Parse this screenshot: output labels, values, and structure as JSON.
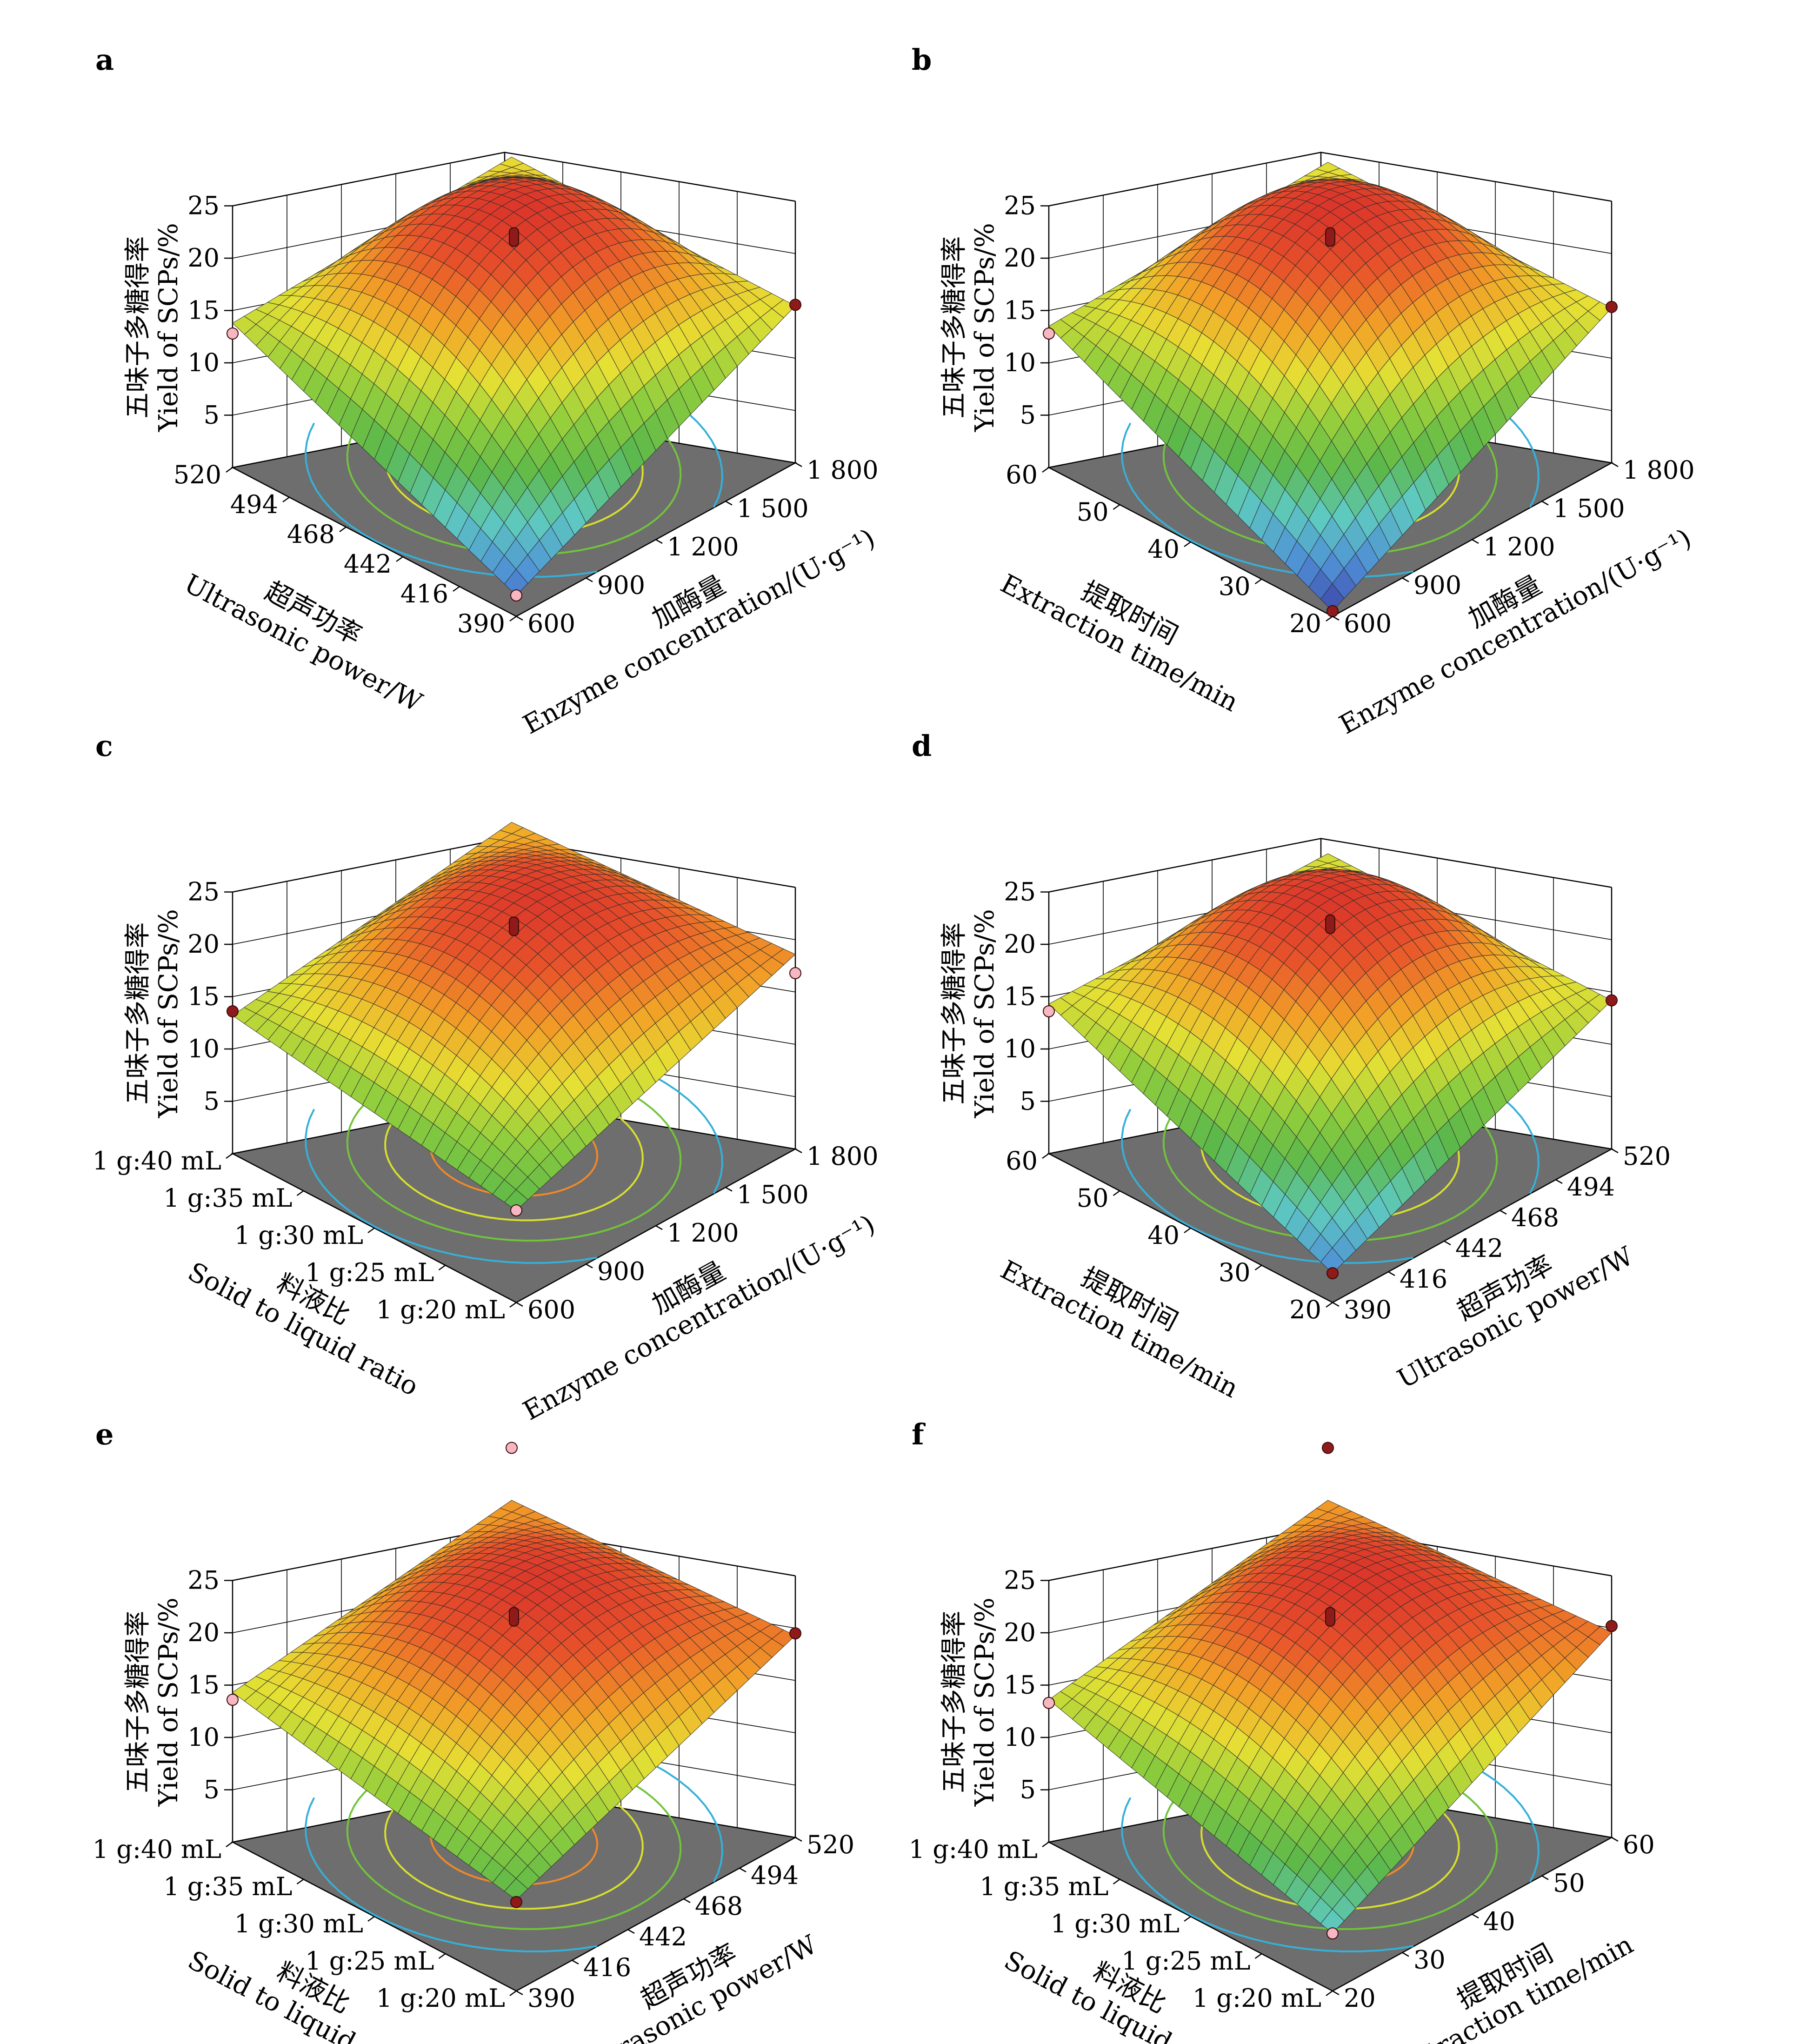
{
  "colors": {
    "floor": "#6e6e6e",
    "surface_scale": [
      "#3a35a0",
      "#4f8fd6",
      "#5ec9c0",
      "#5cb84a",
      "#8fcd3d",
      "#e6e034",
      "#f2a127",
      "#e8552a",
      "#d9302a"
    ],
    "contour_scale": [
      "#36b0d8",
      "#72c43a",
      "#d8e02c",
      "#f08a24"
    ],
    "point_pink": "#f7b7c2",
    "point_dark": "#8e1a1a"
  },
  "panels": [
    {
      "label": "a",
      "zaxis": {
        "title_zh": "五味子多糖得率",
        "title_en": "Yield of SCPs/%",
        "ticks": [
          "5",
          "10",
          "15",
          "20",
          "25"
        ]
      },
      "left_axis": {
        "title_zh": "超声功率",
        "title_en": "Ultrasonic power/W",
        "ticks": [
          "390",
          "416",
          "442",
          "468",
          "494",
          "520"
        ]
      },
      "right_axis": {
        "title_zh": "加酶量",
        "title_en": "Enzyme concentration/(U·g⁻¹)",
        "ticks": [
          "600",
          "900",
          "1 200",
          "1 500",
          "1 800"
        ]
      }
    },
    {
      "label": "b",
      "zaxis": {
        "title_zh": "五味子多糖得率",
        "title_en": "Yield of SCPs/%",
        "ticks": [
          "5",
          "10",
          "15",
          "20",
          "25"
        ]
      },
      "left_axis": {
        "title_zh": "提取时间",
        "title_en": "Extraction time/min",
        "ticks": [
          "20",
          "30",
          "40",
          "50",
          "60"
        ]
      },
      "right_axis": {
        "title_zh": "加酶量",
        "title_en": "Enzyme concentration/(U·g⁻¹)",
        "ticks": [
          "600",
          "900",
          "1 200",
          "1 500",
          "1 800"
        ]
      }
    },
    {
      "label": "c",
      "zaxis": {
        "title_zh": "五味子多糖得率",
        "title_en": "Yield of SCPs/%",
        "ticks": [
          "5",
          "10",
          "15",
          "20",
          "25"
        ]
      },
      "left_axis": {
        "title_zh": "料液比",
        "title_en": "Solid to liquid ratio",
        "ticks": [
          "1 g:20 mL",
          "1 g:25 mL",
          "1 g:30 mL",
          "1 g:35 mL",
          "1 g:40 mL"
        ]
      },
      "right_axis": {
        "title_zh": "加酶量",
        "title_en": "Enzyme concentration/(U·g⁻¹)",
        "ticks": [
          "600",
          "900",
          "1 200",
          "1 500",
          "1 800"
        ]
      }
    },
    {
      "label": "d",
      "zaxis": {
        "title_zh": "五味子多糖得率",
        "title_en": "Yield of SCPs/%",
        "ticks": [
          "5",
          "10",
          "15",
          "20",
          "25"
        ]
      },
      "left_axis": {
        "title_zh": "提取时间",
        "title_en": "Extraction time/min",
        "ticks": [
          "20",
          "30",
          "40",
          "50",
          "60"
        ]
      },
      "right_axis": {
        "title_zh": "超声功率",
        "title_en": "Ultrasonic power/W",
        "ticks": [
          "390",
          "416",
          "442",
          "468",
          "494",
          "520"
        ]
      }
    },
    {
      "label": "e",
      "zaxis": {
        "title_zh": "五味子多糖得率",
        "title_en": "Yield of SCPs/%",
        "ticks": [
          "5",
          "10",
          "15",
          "20",
          "25"
        ]
      },
      "left_axis": {
        "title_zh": "料液比",
        "title_en": "Solid to liquid ratio",
        "ticks": [
          "1 g:20 mL",
          "1 g:25 mL",
          "1 g:30 mL",
          "1 g:35 mL",
          "1 g:40 mL"
        ]
      },
      "right_axis": {
        "title_zh": "超声功率",
        "title_en": "Ultrasonic power/W",
        "ticks": [
          "390",
          "416",
          "442",
          "468",
          "494",
          "520"
        ]
      }
    },
    {
      "label": "f",
      "zaxis": {
        "title_zh": "五味子多糖得率",
        "title_en": "Yield of SCPs/%",
        "ticks": [
          "5",
          "10",
          "15",
          "20",
          "25"
        ]
      },
      "left_axis": {
        "title_zh": "料液比",
        "title_en": "Solid to liquid ratio",
        "ticks": [
          "1 g:20 mL",
          "1 g:25 mL",
          "1 g:30 mL",
          "1 g:35 mL",
          "1 g:40 mL"
        ]
      },
      "right_axis": {
        "title_zh": "提取时间",
        "title_en": "Extraction time/min",
        "ticks": [
          "20",
          "30",
          "40",
          "50",
          "60"
        ]
      }
    }
  ],
  "chart_data": [
    {
      "type": "surface",
      "panel": "a",
      "x": {
        "name": "Ultrasonic power/W",
        "range": [
          390,
          520
        ]
      },
      "y": {
        "name": "Enzyme concentration/(U·g⁻¹)",
        "range": [
          600,
          1800
        ]
      },
      "zlim": [
        0,
        25
      ],
      "surface": {
        "peak": 22.6,
        "corners": {
          "left": 13.8,
          "right": 15.0,
          "back": 15.0,
          "front": 2.0
        }
      },
      "design_points": [
        {
          "corner": "center",
          "z": 21.8,
          "color": "dark"
        },
        {
          "corner": "left",
          "z": 12.8,
          "color": "pink"
        },
        {
          "corner": "right",
          "z": 15.1,
          "color": "dark"
        },
        {
          "corner": "front",
          "z": 2.0,
          "color": "pink"
        }
      ]
    },
    {
      "type": "surface",
      "panel": "b",
      "x": {
        "name": "Extraction time/min",
        "range": [
          20,
          60
        ]
      },
      "y": {
        "name": "Enzyme concentration/(U·g⁻¹)",
        "range": [
          600,
          1800
        ]
      },
      "zlim": [
        0,
        25
      ],
      "surface": {
        "peak": 22.6,
        "corners": {
          "left": 13.5,
          "right": 14.8,
          "back": 14.5,
          "front": 0.5
        }
      },
      "design_points": [
        {
          "corner": "center",
          "z": 21.8,
          "color": "dark"
        },
        {
          "corner": "left",
          "z": 12.8,
          "color": "pink"
        },
        {
          "corner": "right",
          "z": 14.9,
          "color": "dark"
        },
        {
          "corner": "front",
          "z": 0.5,
          "color": "dark"
        }
      ]
    },
    {
      "type": "surface",
      "panel": "c",
      "x": {
        "name": "Solid to liquid ratio",
        "range": [
          "1 g:20 mL",
          "1 g:40 mL"
        ]
      },
      "y": {
        "name": "Enzyme concentration/(U·g⁻¹)",
        "range": [
          600,
          1800
        ]
      },
      "zlim": [
        0,
        25
      ],
      "surface": {
        "peak": 22.3,
        "corners": {
          "left": 13.2,
          "right": 18.6,
          "back": 17.0,
          "front": 8.8
        }
      },
      "design_points": [
        {
          "corner": "center",
          "z": 21.5,
          "color": "dark"
        },
        {
          "corner": "left",
          "z": 13.6,
          "color": "dark"
        },
        {
          "corner": "right",
          "z": 16.8,
          "color": "pink"
        },
        {
          "corner": "front",
          "z": 8.8,
          "color": "pink"
        }
      ]
    },
    {
      "type": "surface",
      "panel": "d",
      "x": {
        "name": "Extraction time/min",
        "range": [
          20,
          60
        ]
      },
      "y": {
        "name": "Ultrasonic power/W",
        "range": [
          390,
          520
        ]
      },
      "zlim": [
        0,
        25
      ],
      "surface": {
        "peak": 22.6,
        "corners": {
          "left": 14.3,
          "right": 14.2,
          "back": 14.0,
          "front": 2.8
        }
      },
      "design_points": [
        {
          "corner": "center",
          "z": 21.7,
          "color": "dark"
        },
        {
          "corner": "left",
          "z": 13.6,
          "color": "pink"
        },
        {
          "corner": "right",
          "z": 14.2,
          "color": "dark"
        },
        {
          "corner": "front",
          "z": 2.8,
          "color": "dark"
        }
      ]
    },
    {
      "type": "surface",
      "panel": "e",
      "x": {
        "name": "Solid to liquid ratio",
        "range": [
          "1 g:20 mL",
          "1 g:40 mL"
        ]
      },
      "y": {
        "name": "Ultrasonic power/W",
        "range": [
          390,
          520
        ]
      },
      "zlim": [
        0,
        25
      ],
      "surface": {
        "peak": 22.3,
        "corners": {
          "left": 14.3,
          "right": 19.3,
          "back": 18.0,
          "front": 8.7
        }
      },
      "design_points": [
        {
          "corner": "center",
          "z": 21.3,
          "color": "dark"
        },
        {
          "corner": "left",
          "z": 13.6,
          "color": "pink"
        },
        {
          "corner": "right",
          "z": 19.5,
          "color": "dark"
        },
        {
          "corner": "front",
          "z": 8.5,
          "color": "dark"
        },
        {
          "corner": "back",
          "z": 23.0,
          "color": "pink"
        }
      ]
    },
    {
      "type": "surface",
      "panel": "f",
      "x": {
        "name": "Solid to liquid ratio",
        "range": [
          "1 g:20 mL",
          "1 g:40 mL"
        ]
      },
      "y": {
        "name": "Extraction time/min",
        "range": [
          20,
          60
        ]
      },
      "zlim": [
        0,
        25
      ],
      "surface": {
        "peak": 22.3,
        "corners": {
          "left": 13.6,
          "right": 19.6,
          "back": 18.0,
          "front": 5.5
        }
      },
      "design_points": [
        {
          "corner": "center",
          "z": 21.3,
          "color": "dark"
        },
        {
          "corner": "left",
          "z": 13.3,
          "color": "pink"
        },
        {
          "corner": "right",
          "z": 20.2,
          "color": "dark"
        },
        {
          "corner": "front",
          "z": 5.5,
          "color": "pink"
        },
        {
          "corner": "back",
          "z": 23.0,
          "color": "dark"
        }
      ]
    }
  ]
}
